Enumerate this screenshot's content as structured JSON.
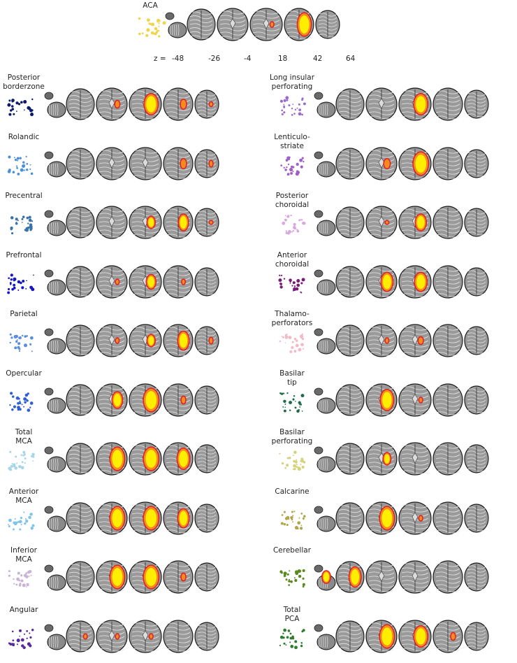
{
  "z_prefix": "z =",
  "z_values": [
    "-48",
    "-26",
    "-4",
    "18",
    "42",
    "64"
  ],
  "colors": {
    "heat_low": "#e2171b",
    "heat_mid": "#f58a1f",
    "heat_high": "#ffee00",
    "brain_dark": "#3a3a3a",
    "brain_light": "#bfbfbf"
  },
  "top": {
    "title": "ACA",
    "dot_color": "#f0d54a",
    "activation": [
      null,
      null,
      null,
      0.2,
      1.0,
      null
    ]
  },
  "left_column": [
    {
      "label": "Posterior\nborderzone",
      "dot_color": "#0b1a6b",
      "activation": [
        null,
        null,
        0.3,
        0.9,
        0.4,
        0.2
      ]
    },
    {
      "label": "Rolandic",
      "dot_color": "#4a90d9",
      "activation": [
        null,
        null,
        null,
        null,
        0.4,
        0.3
      ]
    },
    {
      "label": "Precentral",
      "dot_color": "#3b73a8",
      "activation": [
        null,
        null,
        null,
        0.5,
        0.7,
        0.1
      ]
    },
    {
      "label": "Prefrontal",
      "dot_color": "#1616c8",
      "activation": [
        null,
        null,
        0.2,
        0.6,
        0.2,
        null
      ]
    },
    {
      "label": "Parietal",
      "dot_color": "#5a8de0",
      "activation": [
        null,
        null,
        0.2,
        0.5,
        0.8,
        0.3
      ]
    },
    {
      "label": "Opercular",
      "dot_color": "#2f5fd1",
      "activation": [
        null,
        null,
        0.7,
        1.0,
        0.3,
        null
      ]
    },
    {
      "label": "Total\nMCA",
      "dot_color": "#a6d6e8",
      "activation": [
        null,
        null,
        1.0,
        1.0,
        0.9,
        null
      ]
    },
    {
      "label": "Anterior\nMCA",
      "dot_color": "#7ec3ea",
      "activation": [
        null,
        null,
        1.0,
        1.0,
        0.8,
        null
      ]
    },
    {
      "label": "Inferior\nMCA",
      "dot_color": "#c9b3d6",
      "activation": [
        null,
        null,
        1.0,
        1.0,
        0.3,
        null
      ]
    },
    {
      "label": "Angular",
      "dot_color": "#5a2a9a",
      "activation": [
        null,
        0.2,
        0.2,
        0.2,
        null,
        null
      ]
    }
  ],
  "right_column": [
    {
      "label": "Long insular\nperforating",
      "dot_color": "#9a6ad0",
      "activation": [
        null,
        null,
        null,
        0.9,
        null,
        null
      ]
    },
    {
      "label": "Lenticulo-\nstriate",
      "dot_color": "#a05fc8",
      "activation": [
        null,
        null,
        0.4,
        1.0,
        null,
        null
      ]
    },
    {
      "label": "Posterior\nchoroidal",
      "dot_color": "#d9a8e0",
      "activation": [
        null,
        null,
        0.1,
        0.7,
        null,
        null
      ]
    },
    {
      "label": "Anterior\nchoroidal",
      "dot_color": "#7a1b7a",
      "activation": [
        null,
        null,
        0.8,
        0.8,
        null,
        null
      ]
    },
    {
      "label": "Thalamo-\nperforators",
      "dot_color": "#f2b9c6",
      "activation": [
        null,
        null,
        0.2,
        0.3,
        null,
        null
      ]
    },
    {
      "label": "Basilar\ntip",
      "dot_color": "#1e6b4a",
      "activation": [
        null,
        null,
        0.9,
        0.2,
        null,
        null
      ]
    },
    {
      "label": "Basilar\nperforating",
      "dot_color": "#d6d27a",
      "activation": [
        null,
        null,
        0.5,
        null,
        null,
        null
      ]
    },
    {
      "label": "Calcarine",
      "dot_color": "#b0a64a",
      "activation": [
        null,
        null,
        1.0,
        0.2,
        null,
        null
      ]
    },
    {
      "label": "Cerebellar",
      "dot_color": "#5a8a1e",
      "activation": [
        0.9,
        0.9,
        null,
        null,
        null,
        null
      ]
    },
    {
      "label": "Total\nPCA",
      "dot_color": "#2e7d2e",
      "activation": [
        null,
        null,
        1.0,
        0.9,
        0.3,
        null
      ]
    }
  ]
}
